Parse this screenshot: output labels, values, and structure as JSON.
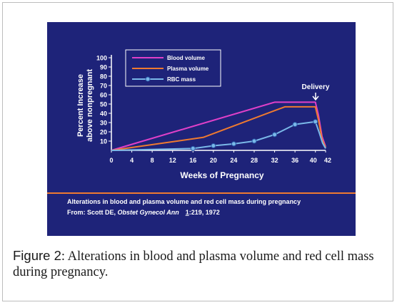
{
  "chart_data": {
    "type": "line",
    "xlabel": "Weeks of Pregnancy",
    "ylabel_line1": "Percent Increase",
    "ylabel_line2": "above nonpregnant",
    "xticks": [
      "0",
      "4",
      "8",
      "12",
      "16",
      "20",
      "24",
      "28",
      "32",
      "36",
      "40",
      "42"
    ],
    "yticks": [
      "10",
      "20",
      "30",
      "40",
      "50",
      "60",
      "70",
      "80",
      "90",
      "100"
    ],
    "xlim": [
      0,
      42
    ],
    "ylim": [
      0,
      100
    ],
    "grid": false,
    "legend_position": "top-left",
    "series": [
      {
        "name": "Blood volume",
        "color": "#e040c8",
        "marker": "none",
        "points": [
          [
            0,
            0
          ],
          [
            32,
            52
          ],
          [
            40,
            52
          ],
          [
            40.6,
            38
          ],
          [
            41.3,
            15
          ],
          [
            42,
            4
          ]
        ]
      },
      {
        "name": "Plasma volume",
        "color": "#ee7a30",
        "marker": "none",
        "points": [
          [
            0,
            0
          ],
          [
            18,
            14
          ],
          [
            34,
            47
          ],
          [
            40,
            47
          ],
          [
            40.6,
            33
          ],
          [
            41.3,
            12
          ],
          [
            42,
            3
          ]
        ]
      },
      {
        "name": "RBC mass",
        "color": "#7ab8e8",
        "marker": "circle",
        "points": [
          [
            0,
            0
          ],
          [
            16,
            2
          ],
          [
            20,
            5
          ],
          [
            24,
            7
          ],
          [
            28,
            10
          ],
          [
            32,
            17
          ],
          [
            36,
            28
          ],
          [
            40,
            31
          ],
          [
            40.7,
            20
          ],
          [
            41.4,
            8
          ],
          [
            42,
            2
          ]
        ]
      }
    ],
    "annotation": "Delivery",
    "source_line1": "Alterations in blood and plasma volume and red cell mass during pregnancy",
    "source_from": "From:  Scott DE, ",
    "source_journal": "Obstet Gynecol Ann",
    "source_volume": "1",
    "source_pages": ":219, 1972"
  },
  "figure_caption": {
    "label": "Figure 2",
    "text": ": Alterations in blood and plasma volume and red cell mass during pregnancy."
  }
}
